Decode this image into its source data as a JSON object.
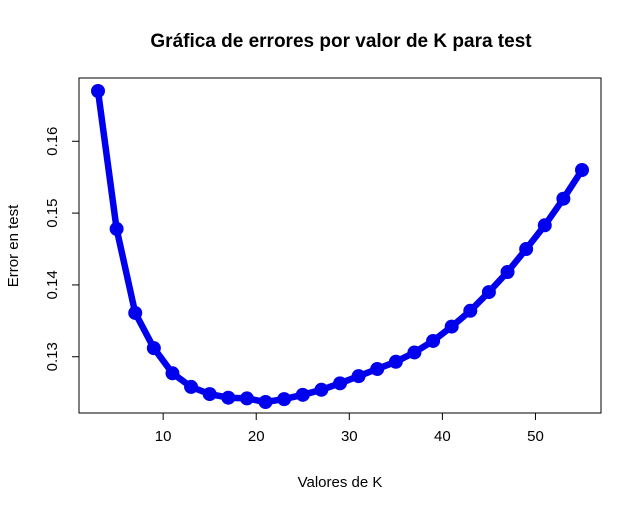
{
  "chart_data": {
    "type": "line",
    "title": "Gráfica de errores por valor de K para test",
    "xlabel": "Valores de K",
    "ylabel": "Error en test",
    "xlim": [
      3,
      55
    ],
    "ylim": [
      0.1237,
      0.167
    ],
    "x_ticks": [
      10,
      20,
      30,
      40,
      50
    ],
    "y_ticks": [
      0.13,
      0.14,
      0.15,
      0.16
    ],
    "grid": false,
    "series_color": "#0000ee",
    "x": [
      3,
      5,
      7,
      9,
      11,
      13,
      15,
      17,
      19,
      21,
      23,
      25,
      27,
      29,
      31,
      33,
      35,
      37,
      39,
      41,
      43,
      45,
      47,
      49,
      51,
      53,
      55
    ],
    "y": [
      0.167,
      0.1478,
      0.1361,
      0.1312,
      0.1277,
      0.1258,
      0.1248,
      0.1243,
      0.1242,
      0.1237,
      0.1241,
      0.1247,
      0.1254,
      0.1263,
      0.1273,
      0.1283,
      0.1293,
      0.1306,
      0.1322,
      0.1342,
      0.1364,
      0.139,
      0.1418,
      0.145,
      0.1483,
      0.152,
      0.156
    ]
  }
}
